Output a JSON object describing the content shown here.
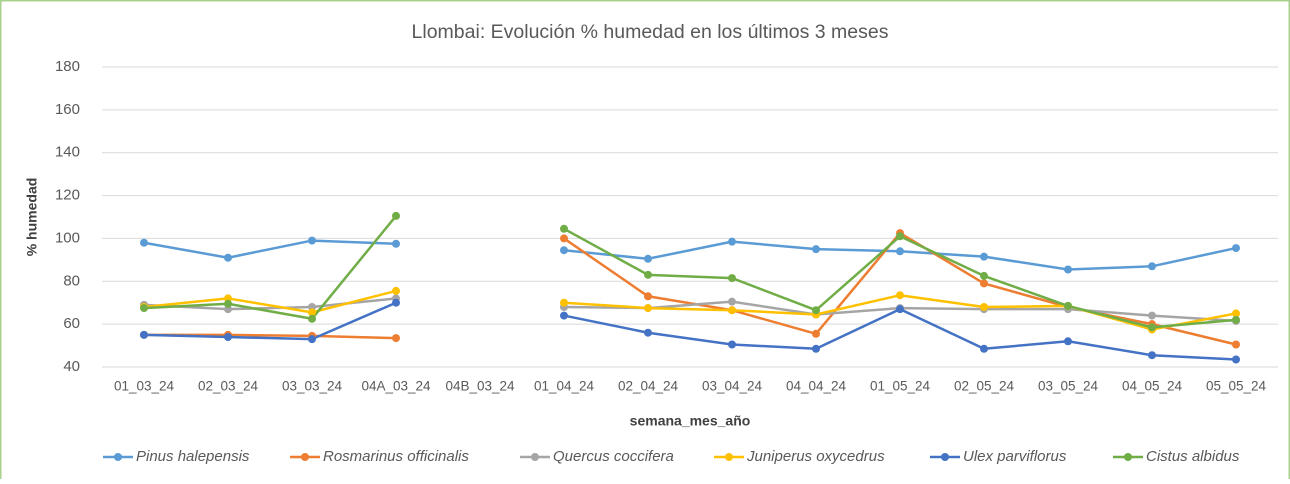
{
  "chart_data": {
    "type": "line",
    "title": "Llombai: Evolución % humedad en los últimos 3 meses",
    "xlabel": "semana_mes_año",
    "ylabel": "% humedad",
    "categories": [
      "01_03_24",
      "02_03_24",
      "03_03_24",
      "04A_03_24",
      "04B_03_24",
      "01_04_24",
      "02_04_24",
      "03_04_24",
      "04_04_24",
      "01_05_24",
      "02_05_24",
      "03_05_24",
      "04_05_24",
      "05_05_24"
    ],
    "ylim": [
      40,
      180
    ],
    "yticks": [
      40,
      60,
      80,
      100,
      120,
      140,
      160,
      180
    ],
    "grid": true,
    "legend": "bottom",
    "series": [
      {
        "name": "Pinus halepensis",
        "color": "#5b9bd5",
        "values": [
          98,
          91,
          99,
          97.5,
          null,
          94.5,
          90.5,
          98.5,
          95,
          94,
          91.5,
          85.5,
          87,
          95.5
        ]
      },
      {
        "name": "Rosmarinus officinalis",
        "color": "#ed7d31",
        "values": [
          55,
          55,
          54.5,
          53.5,
          null,
          100,
          73,
          66.5,
          55.5,
          102.5,
          79,
          68,
          60,
          50.5
        ]
      },
      {
        "name": "Quercus coccifera",
        "color": "#a5a5a5",
        "values": [
          69,
          67,
          68,
          72,
          null,
          68,
          67.5,
          70.5,
          64.5,
          67.5,
          67,
          67,
          64,
          61.5
        ]
      },
      {
        "name": "Juniperus oxycedrus",
        "color": "#ffc000",
        "values": [
          68,
          72,
          65.5,
          75.5,
          null,
          70,
          67.5,
          66.5,
          64.5,
          73.5,
          68,
          68.5,
          57.5,
          65
        ]
      },
      {
        "name": "Ulex parviflorus",
        "color": "#4472c4",
        "values": [
          55,
          54,
          53,
          70,
          null,
          64,
          56,
          50.5,
          48.5,
          67,
          48.5,
          52,
          45.5,
          43.5
        ]
      },
      {
        "name": "Cistus albidus",
        "color": "#70ad47",
        "values": [
          67.5,
          69.5,
          62.5,
          110.5,
          null,
          104.5,
          83,
          81.5,
          66.5,
          101,
          82.5,
          68.5,
          58.5,
          62
        ]
      }
    ]
  }
}
